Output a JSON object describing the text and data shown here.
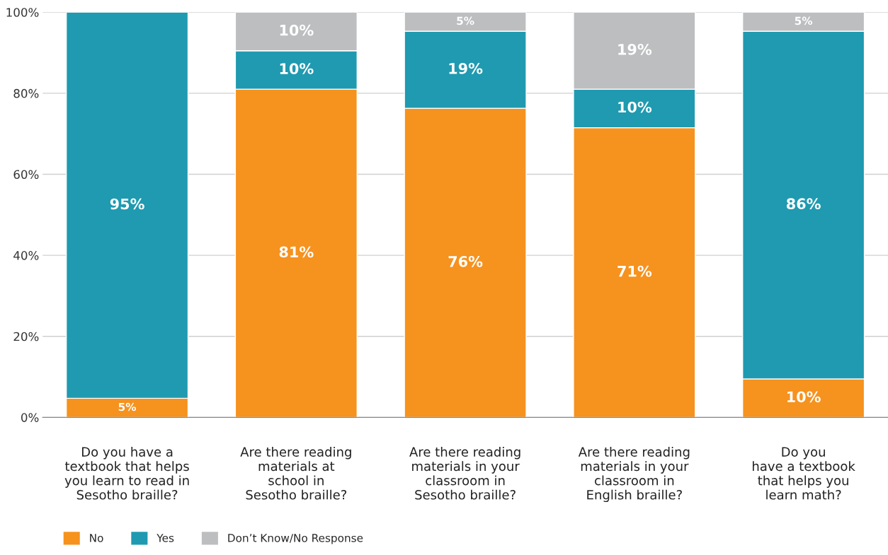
{
  "chart_data": {
    "type": "bar",
    "stacked": true,
    "categories": [
      "Do you have a\ntextbook that helps\nyou learn to read in\nSesotho braille?",
      "Are there reading\nmaterials at\nschool in\nSesotho braille?",
      "Are there reading\nmaterials in your\nclassroom in\nSesotho braille?",
      "Are there reading\nmaterials in your\nclassroom in\nEnglish braille?",
      "Do you\nhave a textbook\nthat helps you\nlearn math?"
    ],
    "series": [
      {
        "name": "No",
        "color": "#f6921e",
        "values": [
          4.7,
          81,
          76.3,
          71.5,
          9.5
        ],
        "value_labels": [
          "5%",
          "81%",
          "76%",
          "71%",
          "10%"
        ]
      },
      {
        "name": "Yes",
        "color": "#1f9ab0",
        "values": [
          95.3,
          9.5,
          19,
          9.5,
          85.8
        ],
        "value_labels": [
          "95%",
          "10%",
          "19%",
          "10%",
          "86%"
        ]
      },
      {
        "name": "Don’t Know/No Response",
        "color": "#bcbec0",
        "values": [
          null,
          9.5,
          4.7,
          19,
          4.7
        ],
        "value_labels": [
          null,
          "10%",
          "5%",
          "19%",
          "5%"
        ]
      }
    ],
    "ylim": [
      0,
      100
    ],
    "yticks": [
      {
        "value": 0,
        "label": "0%"
      },
      {
        "value": 20,
        "label": "20%"
      },
      {
        "value": 40,
        "label": "40%"
      },
      {
        "value": 60,
        "label": "60%"
      },
      {
        "value": 80,
        "label": "80%"
      },
      {
        "value": 100,
        "label": "100%"
      }
    ],
    "grid": "y",
    "legend": "bottom left"
  }
}
